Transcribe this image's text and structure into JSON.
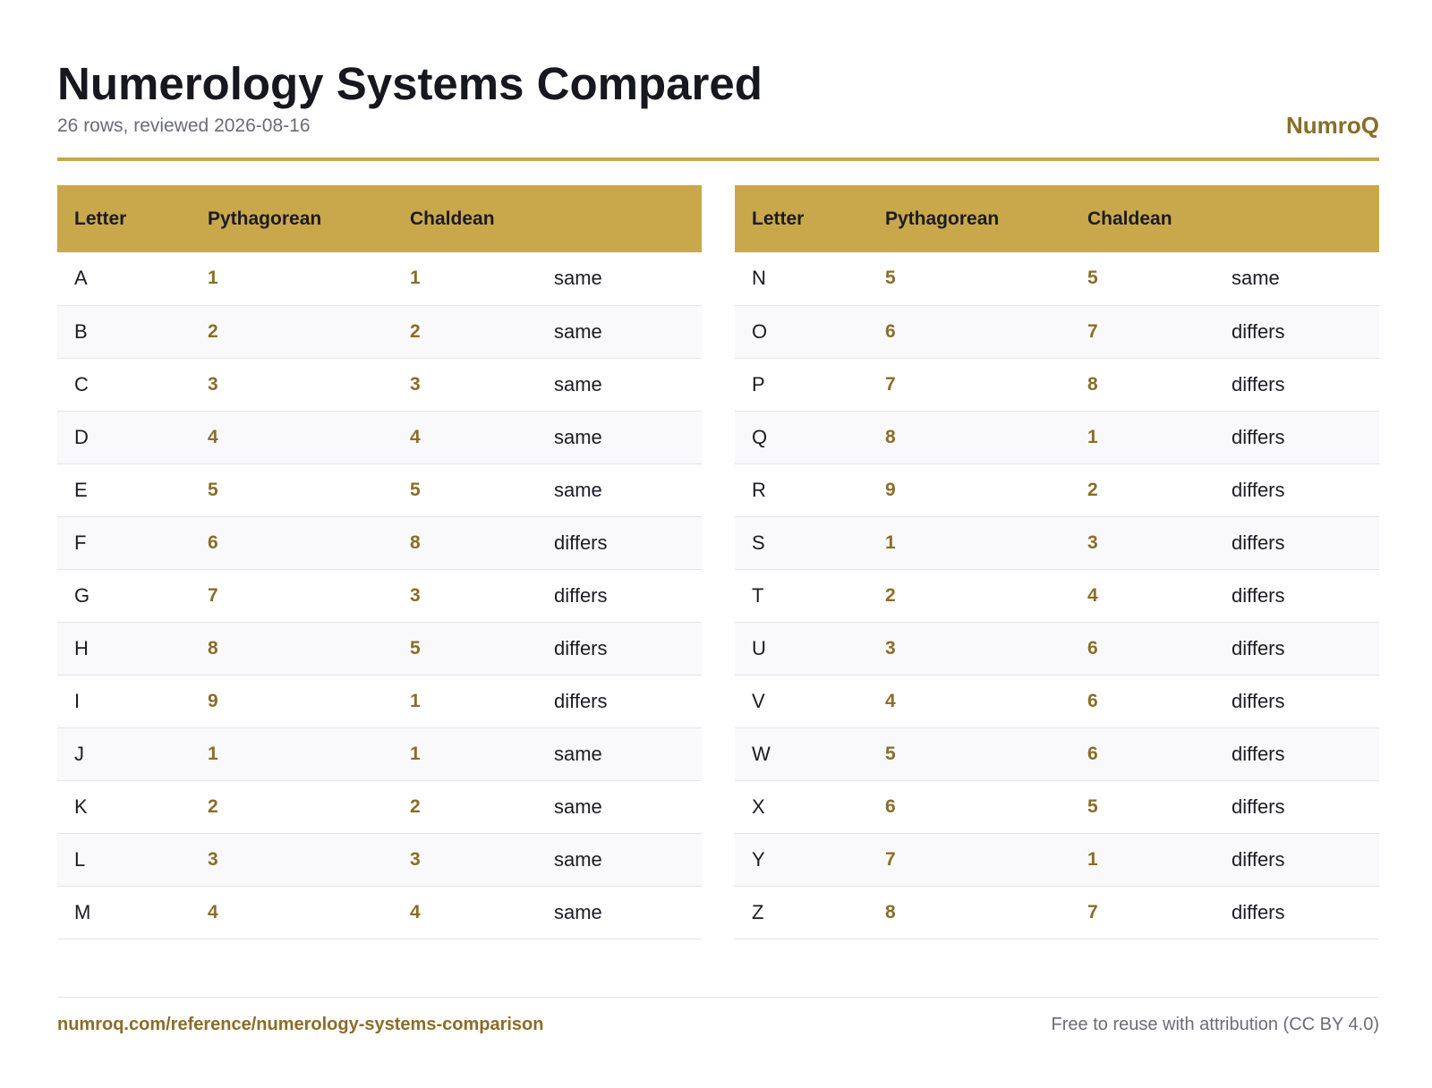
{
  "header": {
    "title": "Numerology Systems Compared",
    "subtitle": "26 rows, reviewed 2026-08-16",
    "brand": "NumroQ"
  },
  "columns": {
    "letter": "Letter",
    "pythagorean": "Pythagorean",
    "chaldean": "Chaldean",
    "status": ""
  },
  "left_table": [
    {
      "letter": "A",
      "pythagorean": "1",
      "chaldean": "1",
      "status": "same"
    },
    {
      "letter": "B",
      "pythagorean": "2",
      "chaldean": "2",
      "status": "same"
    },
    {
      "letter": "C",
      "pythagorean": "3",
      "chaldean": "3",
      "status": "same"
    },
    {
      "letter": "D",
      "pythagorean": "4",
      "chaldean": "4",
      "status": "same"
    },
    {
      "letter": "E",
      "pythagorean": "5",
      "chaldean": "5",
      "status": "same"
    },
    {
      "letter": "F",
      "pythagorean": "6",
      "chaldean": "8",
      "status": "differs"
    },
    {
      "letter": "G",
      "pythagorean": "7",
      "chaldean": "3",
      "status": "differs"
    },
    {
      "letter": "H",
      "pythagorean": "8",
      "chaldean": "5",
      "status": "differs"
    },
    {
      "letter": "I",
      "pythagorean": "9",
      "chaldean": "1",
      "status": "differs"
    },
    {
      "letter": "J",
      "pythagorean": "1",
      "chaldean": "1",
      "status": "same"
    },
    {
      "letter": "K",
      "pythagorean": "2",
      "chaldean": "2",
      "status": "same"
    },
    {
      "letter": "L",
      "pythagorean": "3",
      "chaldean": "3",
      "status": "same"
    },
    {
      "letter": "M",
      "pythagorean": "4",
      "chaldean": "4",
      "status": "same"
    }
  ],
  "right_table": [
    {
      "letter": "N",
      "pythagorean": "5",
      "chaldean": "5",
      "status": "same"
    },
    {
      "letter": "O",
      "pythagorean": "6",
      "chaldean": "7",
      "status": "differs"
    },
    {
      "letter": "P",
      "pythagorean": "7",
      "chaldean": "8",
      "status": "differs"
    },
    {
      "letter": "Q",
      "pythagorean": "8",
      "chaldean": "1",
      "status": "differs"
    },
    {
      "letter": "R",
      "pythagorean": "9",
      "chaldean": "2",
      "status": "differs"
    },
    {
      "letter": "S",
      "pythagorean": "1",
      "chaldean": "3",
      "status": "differs"
    },
    {
      "letter": "T",
      "pythagorean": "2",
      "chaldean": "4",
      "status": "differs"
    },
    {
      "letter": "U",
      "pythagorean": "3",
      "chaldean": "6",
      "status": "differs"
    },
    {
      "letter": "V",
      "pythagorean": "4",
      "chaldean": "6",
      "status": "differs"
    },
    {
      "letter": "W",
      "pythagorean": "5",
      "chaldean": "6",
      "status": "differs"
    },
    {
      "letter": "X",
      "pythagorean": "6",
      "chaldean": "5",
      "status": "differs"
    },
    {
      "letter": "Y",
      "pythagorean": "7",
      "chaldean": "1",
      "status": "differs"
    },
    {
      "letter": "Z",
      "pythagorean": "8",
      "chaldean": "7",
      "status": "differs"
    }
  ],
  "footer": {
    "link": "numroq.com/reference/numerology-systems-comparison",
    "license": "Free to reuse with attribution (CC BY 4.0)"
  },
  "colors": {
    "accent": "#c9a84c",
    "number": "#8a6d27",
    "muted": "#6b6b78"
  }
}
